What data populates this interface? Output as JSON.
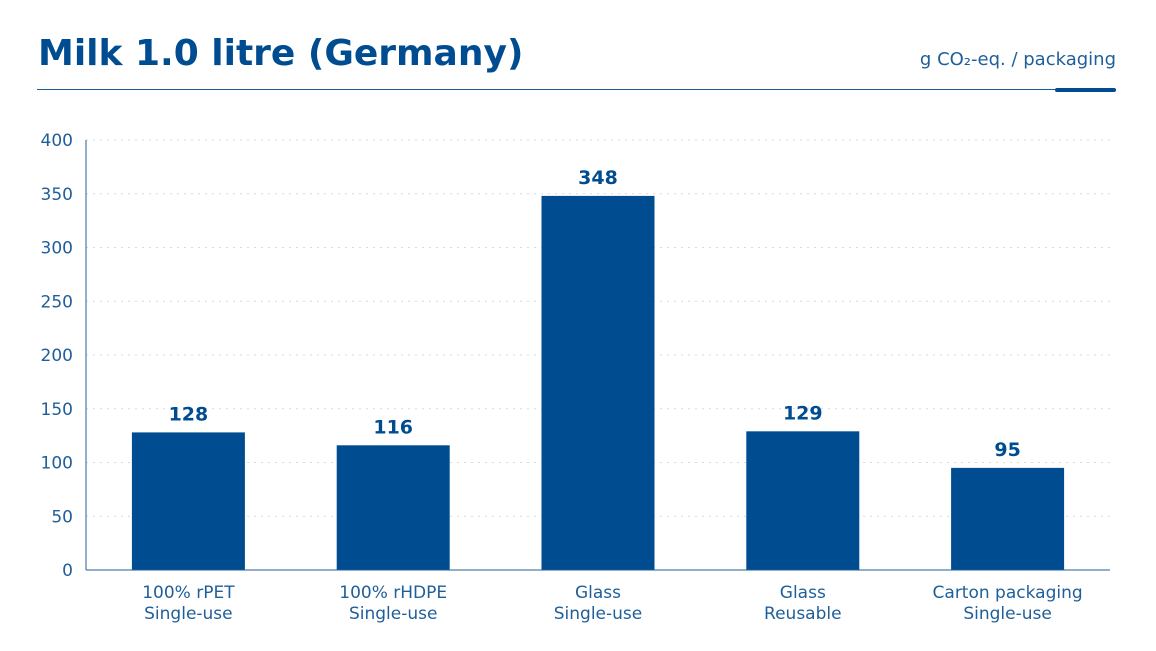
{
  "header": {
    "title": "Milk 1.0 litre (Germany)",
    "unit": "g CO₂-eq. / packaging"
  },
  "colors": {
    "bar": "#004c91",
    "text": "#1f5f99",
    "axis": "#1f5f99",
    "grid": "#d9d9d9"
  },
  "chart_data": {
    "type": "bar",
    "title": "Milk 1.0 litre (Germany)",
    "ylabel": "g CO₂-eq. / packaging",
    "xlabel": "",
    "categories": [
      [
        "100% rPET",
        "Single-use"
      ],
      [
        "100% rHDPE",
        "Single-use"
      ],
      [
        "Glass",
        "Single-use"
      ],
      [
        "Glass",
        "Reusable"
      ],
      [
        "Carton packaging",
        "Single-use"
      ]
    ],
    "values": [
      128,
      116,
      348,
      129,
      95
    ],
    "ylim": [
      0,
      400
    ],
    "yticks": [
      0,
      50,
      100,
      150,
      200,
      250,
      300,
      350,
      400
    ],
    "grid": "horizontal-dotted",
    "legend": "none"
  }
}
